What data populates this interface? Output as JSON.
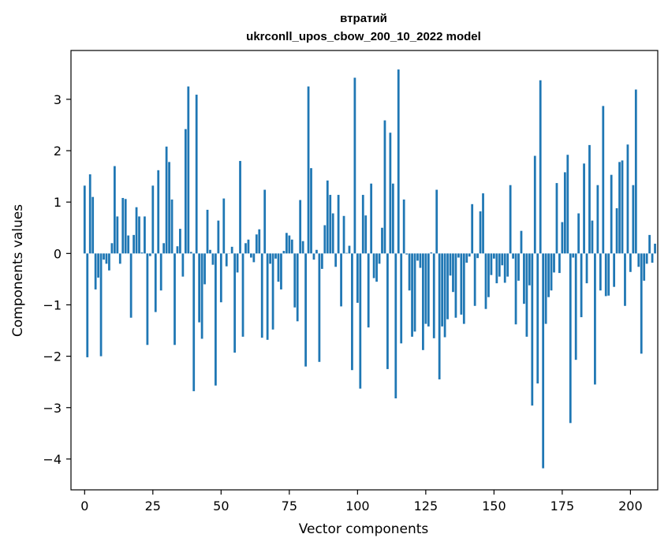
{
  "chart_data": {
    "type": "bar",
    "title_line1": "втратий",
    "title_line2": "ukrconll_upos_cbow_200_10_2022 model",
    "xlabel": "Vector components",
    "ylabel": "Components values",
    "xlim": [
      -5,
      210
    ],
    "ylim": [
      -4.6,
      3.95
    ],
    "xticks": [
      0,
      25,
      50,
      75,
      100,
      125,
      150,
      175,
      200
    ],
    "yticks": [
      -4,
      -3,
      -2,
      -1,
      0,
      1,
      2,
      3
    ],
    "xtick_labels": [
      "0",
      "25",
      "50",
      "75",
      "100",
      "125",
      "150",
      "175",
      "200"
    ],
    "ytick_labels": [
      "−4",
      "−3",
      "−2",
      "−1",
      "0",
      "1",
      "2",
      "3"
    ],
    "bar_color": "#1f77b4",
    "grid": false,
    "legend": "none",
    "values": [
      1.32,
      -2.02,
      1.54,
      1.1,
      -0.7,
      -0.47,
      -2.0,
      -0.12,
      -0.2,
      -0.33,
      0.2,
      1.7,
      0.72,
      -0.2,
      1.08,
      1.06,
      0.35,
      -1.25,
      0.36,
      0.9,
      0.72,
      0.02,
      0.72,
      -1.78,
      -0.05,
      1.32,
      -1.14,
      1.62,
      -0.72,
      0.2,
      2.08,
      1.78,
      1.05,
      -1.78,
      0.14,
      0.48,
      -0.45,
      2.42,
      3.25,
      0.03,
      -2.68,
      3.09,
      -1.34,
      -1.66,
      -0.6,
      0.85,
      0.07,
      -0.22,
      -2.57,
      0.64,
      -0.95,
      1.07,
      -0.25,
      0.0,
      0.13,
      -1.93,
      -0.37,
      1.8,
      -1.62,
      0.2,
      0.27,
      -0.08,
      -0.17,
      0.37,
      0.47,
      -1.64,
      1.24,
      -1.68,
      -0.2,
      -1.48,
      -0.1,
      -0.55,
      -0.7,
      0.05,
      0.4,
      0.35,
      0.27,
      -1.05,
      -1.32,
      1.04,
      0.24,
      -2.2,
      3.25,
      1.66,
      -0.12,
      0.07,
      -2.11,
      -0.3,
      0.55,
      1.42,
      1.14,
      0.78,
      -0.26,
      1.14,
      -1.03,
      0.73,
      0.01,
      0.15,
      -2.27,
      3.42,
      -0.96,
      -2.63,
      1.14,
      0.74,
      -1.44,
      1.36,
      -0.48,
      -0.55,
      -0.2,
      0.5,
      2.59,
      -2.25,
      2.35,
      1.36,
      -2.82,
      3.58,
      -1.75,
      1.05,
      -0.02,
      -0.72,
      -1.62,
      -1.52,
      -0.14,
      -0.28,
      -1.88,
      -1.37,
      -1.42,
      0.02,
      -1.65,
      1.24,
      -2.45,
      -1.42,
      -1.63,
      -1.28,
      -0.43,
      -0.75,
      -1.25,
      -0.08,
      -1.19,
      -1.37,
      -0.18,
      -0.06,
      0.96,
      -1.02,
      -0.09,
      0.82,
      1.17,
      -1.08,
      -0.85,
      -0.42,
      -0.1,
      -0.58,
      -0.45,
      -0.23,
      -0.57,
      -0.45,
      1.33,
      -0.1,
      -1.38,
      -0.53,
      0.44,
      -0.98,
      -1.62,
      -0.62,
      -2.96,
      1.9,
      -2.53,
      3.37,
      -4.18,
      -1.37,
      -0.85,
      -0.72,
      -0.37,
      1.37,
      -0.38,
      0.61,
      1.58,
      1.92,
      -3.3,
      -0.08,
      -2.07,
      0.78,
      -1.24,
      1.75,
      -0.58,
      2.11,
      0.64,
      -2.55,
      1.33,
      -0.72,
      2.87,
      -0.83,
      -0.82,
      1.53,
      -0.65,
      0.88,
      1.78,
      1.81,
      -1.02,
      2.12,
      -0.36,
      1.33,
      3.19,
      -0.26,
      -1.95,
      -0.53,
      -0.2,
      0.36,
      -0.18,
      0.19
    ]
  }
}
